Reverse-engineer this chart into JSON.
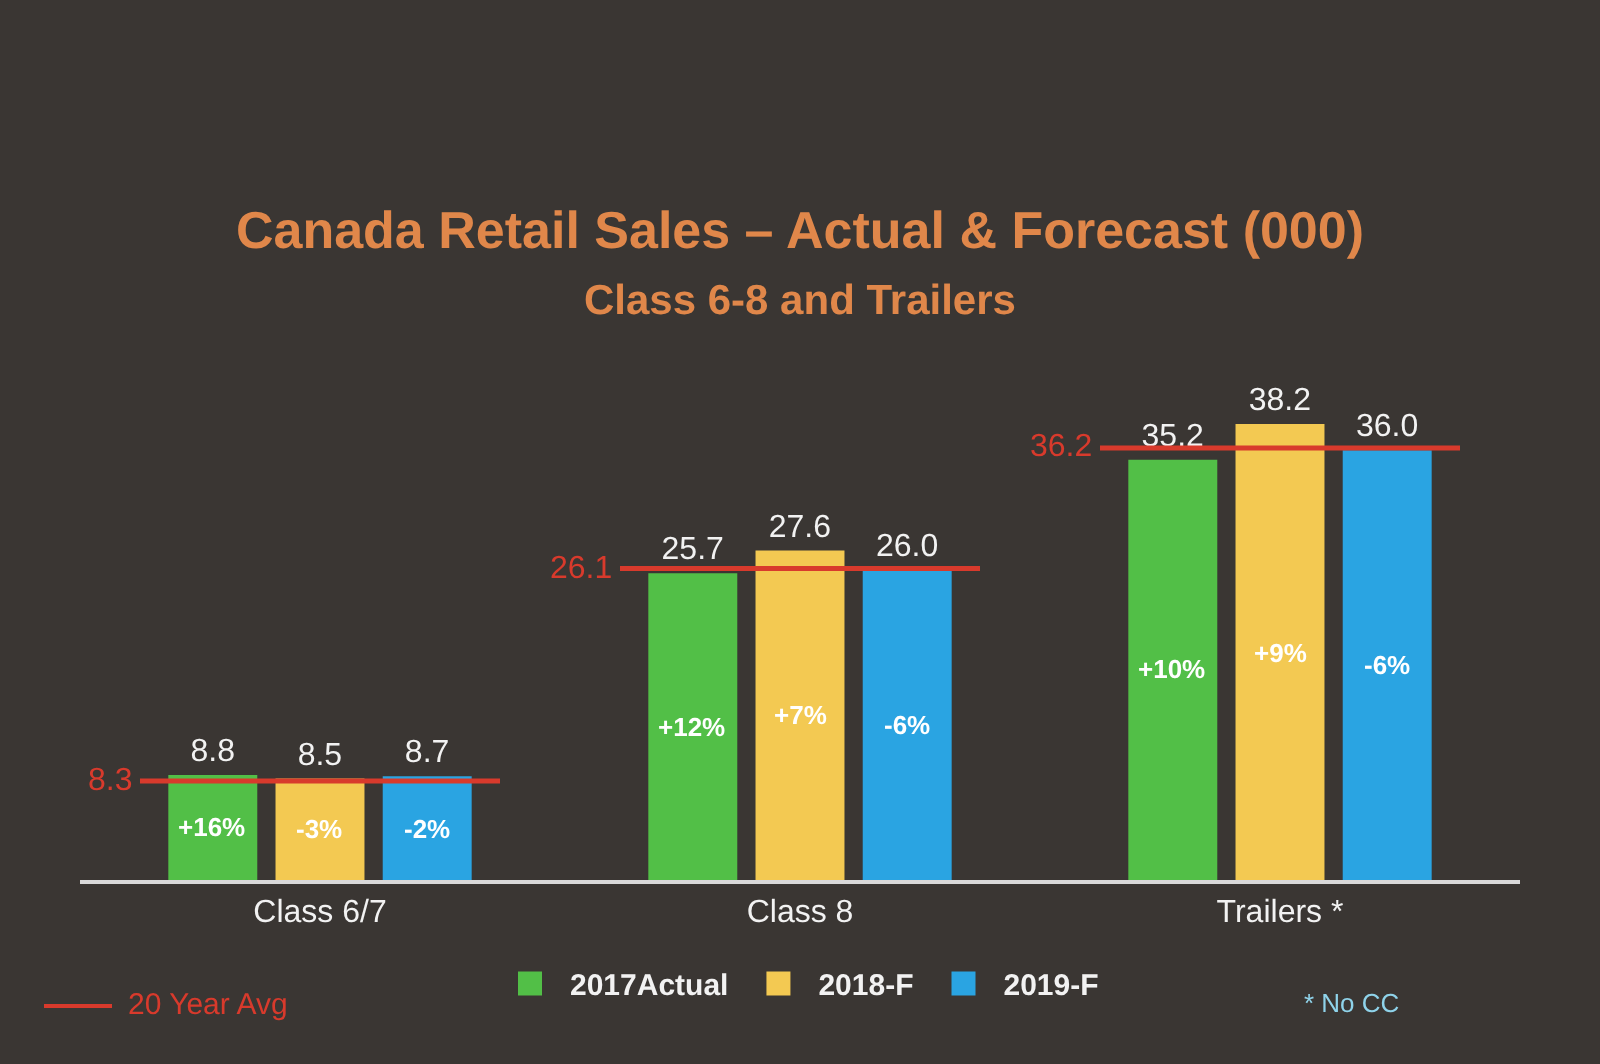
{
  "chart_data": {
    "type": "bar",
    "title": "Canada Retail Sales – Actual & Forecast (000)",
    "subtitle": "Class 6-8 and Trailers",
    "categories": [
      "Class 6/7",
      "Class 8",
      "Trailers *"
    ],
    "series": [
      {
        "name": "2017Actual",
        "color": "#52bf47",
        "values": [
          8.8,
          25.7,
          35.2
        ],
        "value_labels": [
          "8.8",
          "25.7",
          "35.2"
        ]
      },
      {
        "name": "2018-F",
        "color": "#f3c952",
        "values": [
          8.5,
          27.6,
          38.2
        ],
        "value_labels": [
          "8.5",
          "27.6",
          "38.2"
        ]
      },
      {
        "name": "2019-F",
        "color": "#2aa4e2",
        "values": [
          8.7,
          26.0,
          36.0
        ],
        "value_labels": [
          "8.7",
          "26.0",
          "36.0"
        ]
      }
    ],
    "ref_lines": [
      {
        "axis": "y",
        "value": 8.3,
        "label": "8.3",
        "color": "#d83a2c"
      },
      {
        "axis": "y",
        "value": 26.1,
        "label": "26.1",
        "color": "#d83a2c"
      },
      {
        "axis": "y",
        "value": 36.2,
        "label": "36.2",
        "color": "#d83a2c"
      }
    ],
    "legend": "bottom",
    "annotations": [
      "+16%",
      "-3%",
      "-2%",
      "+12%",
      "+7%",
      "-6%",
      "+10%",
      "+9%",
      "-6%",
      "20 Year Avg",
      "* No CC"
    ]
  }
}
